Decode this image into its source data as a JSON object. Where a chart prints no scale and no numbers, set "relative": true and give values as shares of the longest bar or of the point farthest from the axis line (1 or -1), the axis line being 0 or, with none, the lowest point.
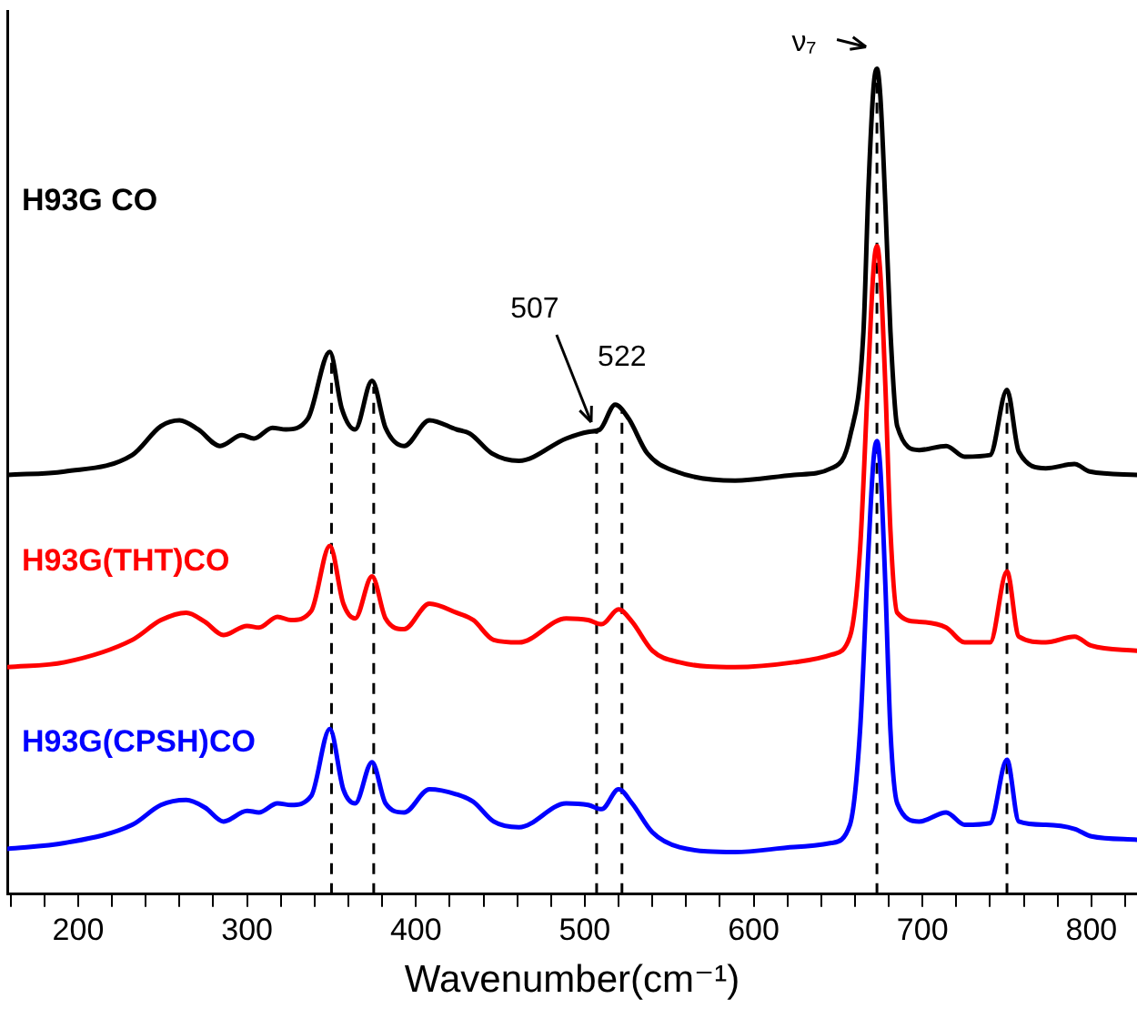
{
  "chart_data": {
    "type": "line",
    "relative": true,
    "xlabel": "Wavenumber(cm⁻¹)",
    "xlim": [
      158,
      827
    ],
    "xticks": [
      {
        "value": 160,
        "label": null
      },
      {
        "value": 180,
        "label": null
      },
      200,
      {
        "value": 220,
        "label": null
      },
      {
        "value": 240,
        "label": null
      },
      {
        "value": 260,
        "label": null
      },
      {
        "value": 280,
        "label": null
      },
      300,
      {
        "value": 320,
        "label": null
      },
      {
        "value": 340,
        "label": null
      },
      {
        "value": 360,
        "label": null
      },
      {
        "value": 380,
        "label": null
      },
      400,
      {
        "value": 420,
        "label": null
      },
      {
        "value": 440,
        "label": null
      },
      {
        "value": 460,
        "label": null
      },
      {
        "value": 480,
        "label": null
      },
      500,
      {
        "value": 520,
        "label": null
      },
      {
        "value": 540,
        "label": null
      },
      {
        "value": 560,
        "label": null
      },
      {
        "value": 580,
        "label": null
      },
      600,
      {
        "value": 620,
        "label": null
      },
      {
        "value": 640,
        "label": null
      },
      {
        "value": 660,
        "label": null
      },
      {
        "value": 680,
        "label": null
      },
      700,
      {
        "value": 720,
        "label": null
      },
      {
        "value": 740,
        "label": null
      },
      {
        "value": 760,
        "label": null
      },
      {
        "value": 780,
        "label": null
      },
      800,
      {
        "value": 820,
        "label": null
      }
    ],
    "grid": false,
    "legend": false,
    "marker": "none",
    "line_style": "solid",
    "tick_labels": "x",
    "series": [
      {
        "name": "H93G CO",
        "color": "#000000",
        "x": [
          158,
          192,
          232,
          249,
          260,
          271,
          284,
          297,
          304,
          315,
          323,
          336,
          349,
          356,
          364,
          374,
          382,
          393,
          408,
          424,
          432,
          445,
          461,
          489,
          502,
          509,
          518,
          526,
          537,
          554,
          589,
          624,
          646,
          657,
          665,
          668,
          671,
          673,
          675,
          678,
          681,
          685,
          698,
          714,
          725,
          740,
          750,
          757,
          773,
          790,
          799,
          827
        ],
        "values": [
          0.508,
          0.512,
          0.532,
          0.567,
          0.574,
          0.563,
          0.543,
          0.556,
          0.552,
          0.565,
          0.563,
          0.576,
          0.657,
          0.589,
          0.563,
          0.622,
          0.565,
          0.543,
          0.574,
          0.563,
          0.558,
          0.534,
          0.525,
          0.552,
          0.56,
          0.563,
          0.593,
          0.576,
          0.534,
          0.512,
          0.501,
          0.508,
          0.516,
          0.554,
          0.681,
          0.857,
          0.978,
          1,
          0.967,
          0.835,
          0.681,
          0.567,
          0.538,
          0.543,
          0.53,
          0.532,
          0.611,
          0.536,
          0.516,
          0.521,
          0.512,
          0.508
        ]
      },
      {
        "name": "H93G(THT)CO",
        "color": "#ff0000",
        "x": [
          158,
          192,
          232,
          249,
          264,
          275,
          286,
          300,
          307,
          318,
          326,
          338,
          349,
          357,
          364,
          374,
          382,
          393,
          408,
          424,
          434,
          446,
          461,
          489,
          502,
          510,
          520,
          528,
          540,
          556,
          589,
          624,
          646,
          657,
          663,
          668,
          671,
          673,
          675,
          678,
          681,
          685,
          698,
          714,
          725,
          740,
          750,
          757,
          773,
          790,
          800,
          827
        ],
        "values": [
          0.275,
          0.281,
          0.308,
          0.332,
          0.341,
          0.33,
          0.314,
          0.325,
          0.323,
          0.336,
          0.332,
          0.343,
          0.422,
          0.352,
          0.334,
          0.385,
          0.334,
          0.321,
          0.352,
          0.341,
          0.332,
          0.308,
          0.305,
          0.334,
          0.332,
          0.327,
          0.345,
          0.33,
          0.295,
          0.281,
          0.275,
          0.281,
          0.29,
          0.312,
          0.418,
          0.637,
          0.758,
          0.785,
          0.752,
          0.615,
          0.44,
          0.341,
          0.33,
          0.323,
          0.305,
          0.305,
          0.391,
          0.312,
          0.305,
          0.312,
          0.301,
          0.295
        ]
      },
      {
        "name": "H93G(CPSH)CO",
        "color": "#0000ff",
        "x": [
          158,
          192,
          232,
          249,
          264,
          275,
          286,
          300,
          307,
          318,
          326,
          338,
          349,
          357,
          364,
          374,
          382,
          393,
          408,
          424,
          434,
          446,
          461,
          489,
          502,
          510,
          520,
          528,
          540,
          556,
          589,
          624,
          646,
          657,
          663,
          668,
          671,
          673,
          675,
          678,
          681,
          685,
          698,
          714,
          725,
          740,
          750,
          757,
          773,
          790,
          800,
          827
        ],
        "values": [
          0.055,
          0.062,
          0.084,
          0.108,
          0.114,
          0.105,
          0.088,
          0.101,
          0.099,
          0.11,
          0.108,
          0.119,
          0.2,
          0.127,
          0.11,
          0.16,
          0.11,
          0.099,
          0.127,
          0.121,
          0.112,
          0.088,
          0.081,
          0.11,
          0.108,
          0.103,
          0.127,
          0.11,
          0.075,
          0.057,
          0.051,
          0.057,
          0.062,
          0.084,
          0.198,
          0.418,
          0.527,
          0.549,
          0.516,
          0.374,
          0.198,
          0.11,
          0.088,
          0.099,
          0.084,
          0.086,
          0.163,
          0.088,
          0.084,
          0.079,
          0.07,
          0.066
        ]
      }
    ],
    "ref_lines": [
      {
        "axis": "x",
        "value": 350,
        "label": null,
        "color": "#000000",
        "line_style": "dashed"
      },
      {
        "axis": "x",
        "value": 375,
        "label": null,
        "color": "#000000",
        "line_style": "dashed"
      },
      {
        "axis": "x",
        "value": 507,
        "label": null,
        "color": "#000000",
        "line_style": "dashed"
      },
      {
        "axis": "x",
        "value": 522,
        "label": null,
        "color": "#000000",
        "line_style": "dashed"
      },
      {
        "axis": "x",
        "value": 673,
        "label": null,
        "color": "#000000",
        "line_style": "dashed"
      },
      {
        "axis": "x",
        "value": 750,
        "label": null,
        "color": "#000000",
        "line_style": "dashed"
      }
    ],
    "annotations": [
      {
        "text": "507",
        "x": 507,
        "y": 0.563
      },
      {
        "text": "522",
        "x": 522,
        "y": 0.593
      },
      {
        "text": "ν₇",
        "x": 673,
        "y": 1
      }
    ]
  }
}
